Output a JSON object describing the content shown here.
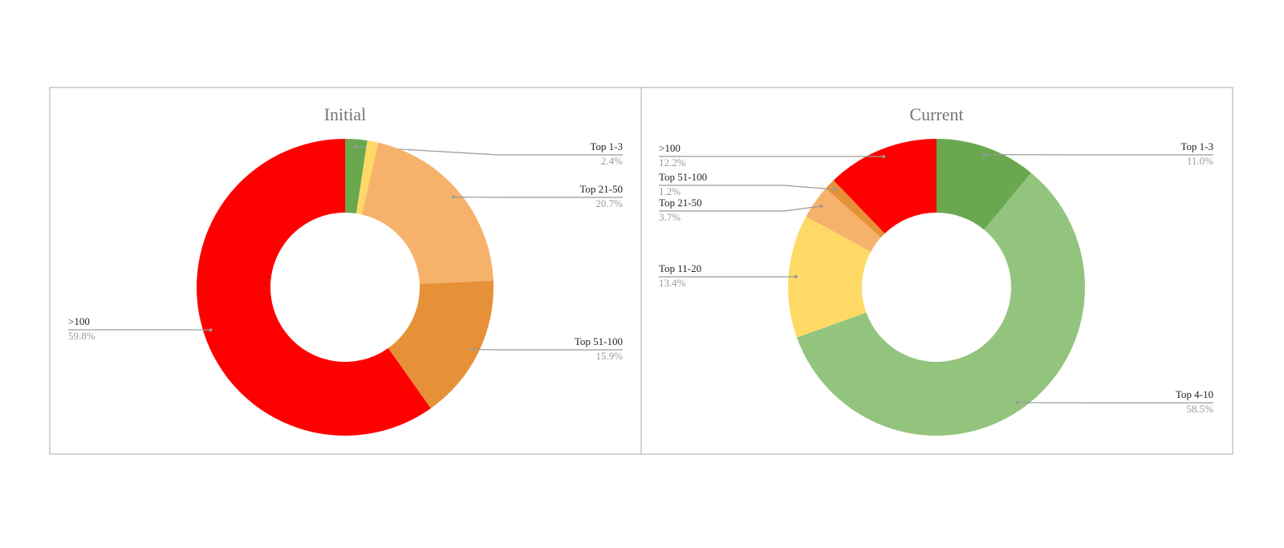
{
  "chart_data": [
    {
      "type": "donut",
      "title": "Initial",
      "categories": [
        "Top 1-3",
        null,
        "Top 21-50",
        "Top 51-100",
        ">100"
      ],
      "values": [
        2.4,
        1.2,
        20.7,
        15.9,
        59.8
      ],
      "value_labels": [
        "2.4%",
        null,
        "20.7%",
        "15.9%",
        "59.8%"
      ],
      "colors": [
        "#6aa84f",
        "#ffd966",
        "#f6b26b",
        "#e69138",
        "#ff0000"
      ]
    },
    {
      "type": "donut",
      "title": "Current",
      "categories": [
        "Top 1-3",
        "Top 4-10",
        "Top 11-20",
        "Top 21-50",
        "Top 51-100",
        ">100"
      ],
      "values": [
        11.0,
        58.5,
        13.4,
        3.7,
        1.2,
        12.2
      ],
      "value_labels": [
        "11.0%",
        "58.5%",
        "13.4%",
        "3.7%",
        "1.2%",
        "12.2%"
      ],
      "colors": [
        "#6aa84f",
        "#93c47d",
        "#ffd966",
        "#f6b26b",
        "#e69138",
        "#ff0000"
      ]
    }
  ]
}
